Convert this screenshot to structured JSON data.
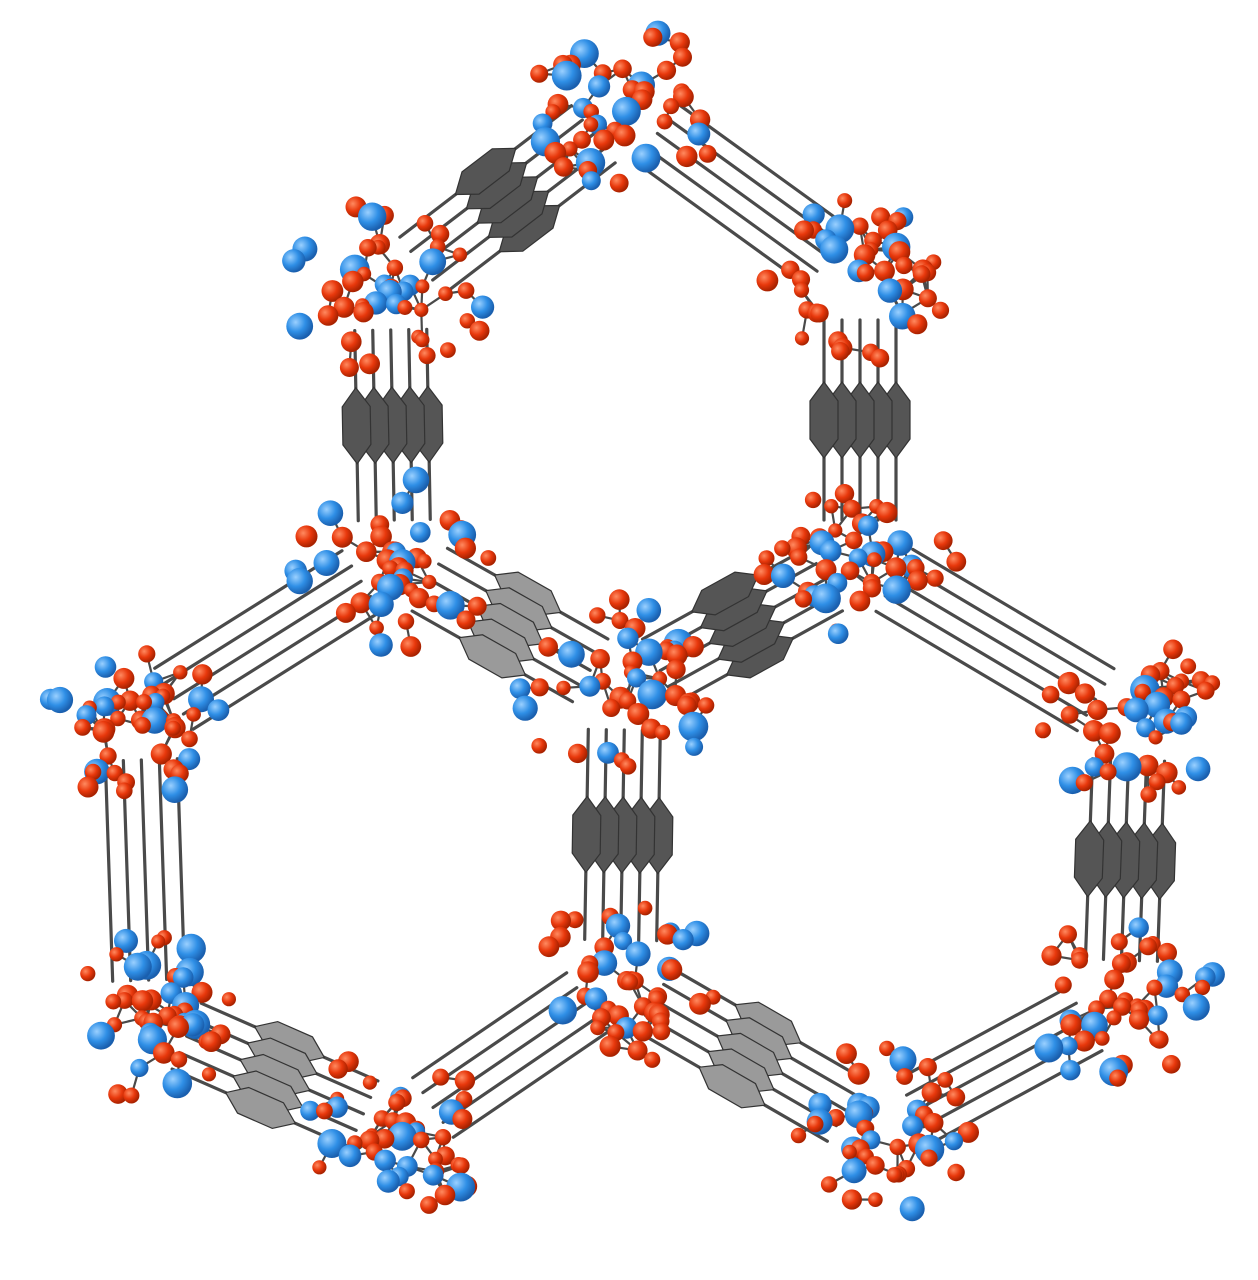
{
  "figure": {
    "background": "#ffffff",
    "colors": {
      "oxygen_atom": "#e8380c",
      "oxygen_highlight": "#ff7a4f",
      "metal_atom": "#2f8fe6",
      "metal_highlight": "#8cc8ff",
      "bond": "#4a4a4a",
      "linker_dark": "#555555",
      "linker_light": "#9a9a9a"
    }
  }
}
